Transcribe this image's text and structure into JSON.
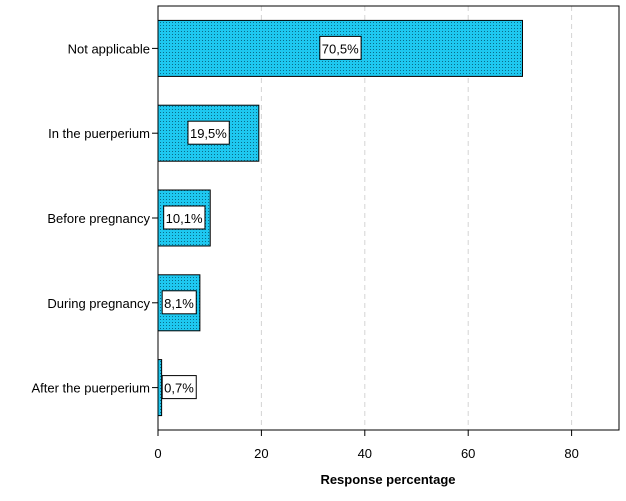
{
  "chart_data": {
    "type": "bar",
    "orientation": "horizontal",
    "title": "",
    "xlabel": "Response percentage",
    "ylabel": "",
    "xlim": [
      0,
      89
    ],
    "xticks": [
      0,
      20,
      40,
      60,
      80
    ],
    "xtick_labels": [
      "0",
      "20",
      "40",
      "60",
      "80"
    ],
    "grid": "vertical dashed",
    "categories": [
      "Not applicable",
      "In the puerperium",
      "Before pregnancy",
      "During pregnancy",
      "After the puerperium"
    ],
    "values": [
      70.5,
      19.5,
      10.1,
      8.1,
      0.7
    ],
    "data_labels": [
      "70,5%",
      "19,5%",
      "10,1%",
      "8,1%",
      "0,7%"
    ],
    "bar_color": "#1ec8f0",
    "bar_pattern": "dotted"
  }
}
